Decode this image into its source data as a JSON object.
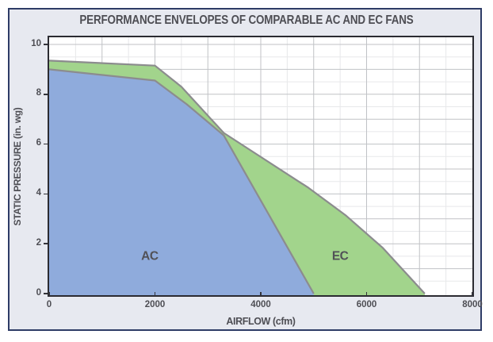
{
  "title": "PERFORMANCE ENVELOPES OF COMPARABLE AC AND EC FANS",
  "colors": {
    "panel_background": "#e7e9f0",
    "panel_border": "#2e3c66",
    "plot_background": "#ffffff",
    "plot_border": "#2b2b31",
    "grid_major": "#c0c2c6",
    "grid_minor": "#e7e8ea",
    "curve_stroke": "#8c8c8e",
    "ac_fill": "#8fabdc",
    "ec_fill": "#a2d48c",
    "text": "#4e4e54",
    "series_label_text": "#515157"
  },
  "chart_data": {
    "type": "area",
    "title": "PERFORMANCE ENVELOPES OF COMPARABLE AC AND EC FANS",
    "xlabel": "AIRFLOW (cfm)",
    "ylabel": "STATIC PRESSURE (in. wg)",
    "xlim": [
      0,
      8000
    ],
    "ylim": [
      0,
      10
    ],
    "x_ticks": [
      0,
      2000,
      4000,
      6000,
      8000
    ],
    "y_ticks": [
      0,
      2,
      4,
      6,
      8,
      10
    ],
    "grid": {
      "major_x": 1000,
      "minor_x": 500,
      "major_y": 1,
      "minor_y": 0.5,
      "grid_on": true
    },
    "legend_position": "labels-inside-areas",
    "series": [
      {
        "name": "EC",
        "label": "EC",
        "label_pos": {
          "x": 5500,
          "y": 1.35
        },
        "points": [
          [
            0,
            9.35
          ],
          [
            2000,
            9.15
          ],
          [
            2500,
            8.3
          ],
          [
            3300,
            6.45
          ],
          [
            4900,
            4.25
          ],
          [
            5600,
            3.15
          ],
          [
            6300,
            1.85
          ],
          [
            7100,
            0
          ]
        ]
      },
      {
        "name": "AC",
        "label": "AC",
        "label_pos": {
          "x": 1900,
          "y": 1.35
        },
        "points": [
          [
            0,
            9.0
          ],
          [
            2000,
            8.55
          ],
          [
            2600,
            7.6
          ],
          [
            3300,
            6.35
          ],
          [
            5000,
            0
          ]
        ]
      }
    ]
  }
}
